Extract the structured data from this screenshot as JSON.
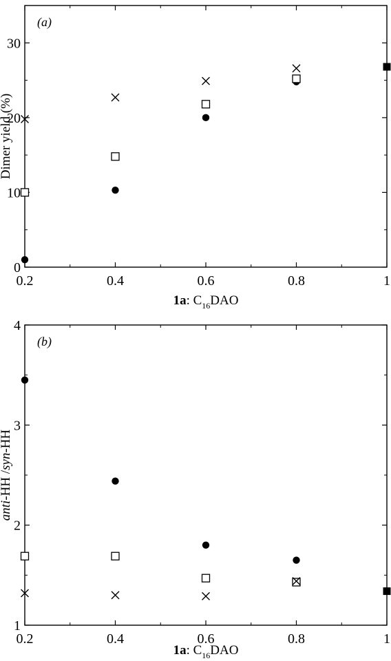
{
  "chart_data": [
    {
      "type": "scatter",
      "panel": "(a)",
      "panel_letter": "a",
      "ylabel": "Dimer yield (%)",
      "xlabel_bold": "1a",
      "xlabel_rest": ": C",
      "xlabel_sub": "16",
      "xlabel_tail": "DAO",
      "xlim": [
        0.2,
        1.0
      ],
      "ylim": [
        0,
        35
      ],
      "xticks": [
        0.2,
        0.4,
        0.6,
        0.8,
        1.0
      ],
      "xtick_labels": [
        "0.2",
        "0.4",
        "0.6",
        "0.8",
        "1"
      ],
      "yticks": [
        0,
        10,
        20,
        30
      ],
      "ytick_labels": [
        "0",
        "10",
        "20",
        "30"
      ],
      "grid": false,
      "series": [
        {
          "marker": "filled-circle",
          "x": [
            0.2,
            0.4,
            0.6,
            0.8
          ],
          "y": [
            1,
            10.3,
            20,
            24.8
          ]
        },
        {
          "marker": "open-square",
          "x": [
            0.2,
            0.4,
            0.6,
            0.8
          ],
          "y": [
            10,
            14.8,
            21.8,
            25.2
          ]
        },
        {
          "marker": "cross",
          "x": [
            0.2,
            0.4,
            0.6,
            0.8
          ],
          "y": [
            19.8,
            22.7,
            24.9,
            26.6
          ]
        },
        {
          "marker": "filled-square",
          "x": [
            1.0
          ],
          "y": [
            26.8
          ]
        }
      ]
    },
    {
      "type": "scatter",
      "panel": "(b)",
      "panel_letter": "b",
      "ylabel_parts": [
        {
          "text": "anti",
          "italic": true
        },
        {
          "text": "-HH /",
          "italic": false
        },
        {
          "text": "syn",
          "italic": true
        },
        {
          "text": "-HH",
          "italic": false
        }
      ],
      "xlabel_bold": "1a",
      "xlabel_rest": ": C",
      "xlabel_sub": "16",
      "xlabel_tail": "DAO",
      "xlim": [
        0.2,
        1.0
      ],
      "ylim": [
        1,
        4
      ],
      "xticks": [
        0.2,
        0.4,
        0.6,
        0.8,
        1.0
      ],
      "xtick_labels": [
        "0.2",
        "0.4",
        "0.6",
        "0.8",
        "1"
      ],
      "yticks": [
        1,
        2,
        3,
        4
      ],
      "ytick_labels": [
        "1",
        "2",
        "3",
        "4"
      ],
      "grid": false,
      "series": [
        {
          "marker": "filled-circle",
          "x": [
            0.2,
            0.4,
            0.6,
            0.8
          ],
          "y": [
            3.45,
            2.44,
            1.8,
            1.65
          ]
        },
        {
          "marker": "open-square",
          "x": [
            0.2,
            0.4,
            0.6,
            0.8
          ],
          "y": [
            1.69,
            1.69,
            1.47,
            1.43
          ]
        },
        {
          "marker": "cross",
          "x": [
            0.2,
            0.4,
            0.6,
            0.8
          ],
          "y": [
            1.32,
            1.3,
            1.29,
            1.44
          ]
        },
        {
          "marker": "filled-square",
          "x": [
            1.0
          ],
          "y": [
            1.34
          ]
        }
      ]
    }
  ]
}
